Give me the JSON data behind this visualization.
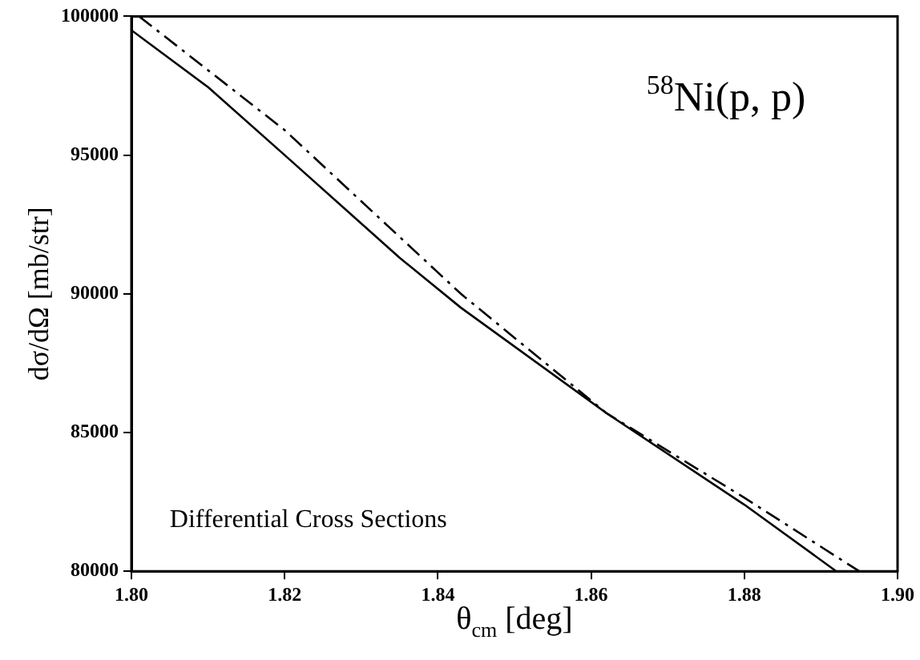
{
  "chart_data": {
    "type": "line",
    "xlabel": "θ$_{cm}$ [deg]",
    "ylabel": "dσ/dΩ [mb/str]",
    "annotations": [
      "$^{58}$Ni(p, p)",
      "Differential Cross Sections"
    ],
    "xlim": [
      1.8,
      1.9
    ],
    "xticks": [
      {
        "value": 1.8,
        "label": "1.80"
      },
      {
        "value": 1.82,
        "label": "1.82"
      },
      {
        "value": 1.84,
        "label": "1.84"
      },
      {
        "value": 1.86,
        "label": "1.86"
      },
      {
        "value": 1.88,
        "label": "1.88"
      },
      {
        "value": 1.9,
        "label": "1.90"
      }
    ],
    "ylim": [
      80000,
      100000
    ],
    "yticks": [
      80000,
      85000,
      90000,
      95000,
      100000
    ],
    "grid": false,
    "legend": false,
    "marker": "none",
    "series": [
      {
        "color": "#000000",
        "line_style": "solid",
        "x": [
          1.8,
          1.81,
          1.82,
          1.835,
          1.843,
          1.862,
          1.88,
          1.892
        ],
        "values": [
          99500,
          97450,
          95000,
          91300,
          89500,
          85700,
          82400,
          80000
        ]
      },
      {
        "color": "#000000",
        "line_style": "dashed",
        "x": [
          1.801,
          1.82,
          1.843,
          1.862,
          1.88,
          1.895
        ],
        "values": [
          100000,
          95900,
          90000,
          85700,
          82650,
          80000
        ]
      }
    ]
  }
}
